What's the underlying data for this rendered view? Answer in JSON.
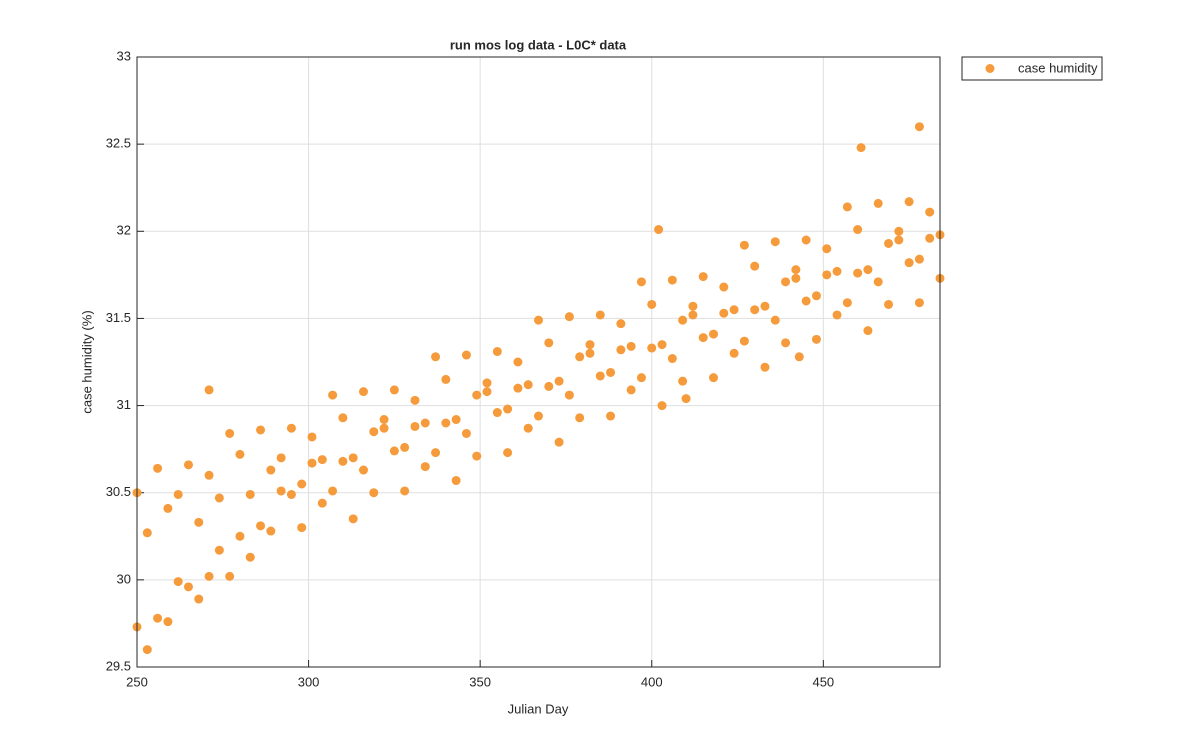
{
  "chart_data": {
    "type": "scatter",
    "title": "run mos log data - L0C* data",
    "x_label": "Julian Day",
    "y_label": "case humidity (%)",
    "xlim": [
      250,
      484
    ],
    "xticks": [
      250,
      300,
      350,
      400,
      450
    ],
    "ylim": [
      29.5,
      33
    ],
    "yticks": [
      29.5,
      30,
      30.5,
      31,
      31.5,
      32,
      32.5,
      33
    ],
    "grid": true,
    "legend": "outside-right",
    "series": [
      {
        "name": "case humidity",
        "color": "#f59b3b",
        "x": [
          250,
          253,
          256,
          259,
          262,
          265,
          268,
          271,
          274,
          277,
          280,
          283,
          286,
          289,
          292,
          295,
          298,
          301,
          304,
          307,
          310,
          313,
          316,
          319,
          322,
          325,
          328,
          331,
          334,
          337,
          340,
          343,
          346,
          349,
          352,
          355,
          358,
          361,
          364,
          367,
          370,
          373,
          376,
          379,
          382,
          385,
          388,
          391,
          394,
          397,
          400,
          403,
          406,
          409,
          412,
          415,
          418,
          421,
          424,
          427,
          430,
          433,
          436,
          439,
          442,
          445,
          448,
          451,
          454,
          457,
          460,
          463,
          466,
          469,
          472,
          475,
          478,
          481,
          484,
          250,
          253,
          256,
          259,
          262,
          265,
          268,
          271,
          274,
          277,
          280,
          283,
          286,
          289,
          292,
          295,
          298,
          301,
          304,
          307,
          310,
          313,
          316,
          319,
          322,
          325,
          328,
          331,
          334,
          337,
          340,
          343,
          346,
          349,
          352,
          355,
          358,
          361,
          364,
          367,
          370,
          373,
          376,
          379,
          382,
          385,
          388,
          391,
          394,
          397,
          400,
          403,
          406,
          409,
          412,
          415,
          418,
          421,
          424,
          427,
          430,
          433,
          436,
          439,
          442,
          445,
          448,
          451,
          454,
          457,
          460,
          463,
          466,
          469,
          472,
          475,
          478,
          481,
          484,
          271,
          402,
          461,
          478,
          410,
          443
        ],
        "values": [
          30.5,
          30.27,
          30.64,
          30.41,
          30.49,
          30.66,
          30.33,
          30.6,
          30.47,
          30.84,
          30.72,
          30.49,
          30.86,
          30.63,
          30.7,
          30.87,
          30.55,
          30.82,
          30.69,
          31.06,
          30.93,
          30.7,
          31.08,
          30.85,
          30.92,
          31.09,
          30.76,
          31.03,
          30.9,
          31.28,
          31.15,
          30.92,
          31.29,
          31.06,
          31.13,
          31.31,
          30.98,
          31.25,
          31.12,
          31.49,
          31.36,
          31.14,
          31.51,
          31.28,
          31.35,
          31.52,
          31.19,
          31.47,
          31.34,
          31.71,
          31.58,
          31.35,
          31.72,
          31.49,
          31.57,
          31.74,
          31.41,
          31.68,
          31.55,
          31.92,
          31.8,
          31.57,
          31.94,
          31.71,
          31.78,
          31.95,
          31.63,
          31.9,
          31.77,
          32.14,
          32.01,
          31.78,
          32.16,
          31.93,
          32.0,
          32.17,
          31.84,
          32.11,
          31.98,
          29.73,
          29.6,
          29.78,
          29.76,
          29.99,
          29.96,
          29.89,
          30.02,
          30.17,
          30.02,
          30.25,
          30.13,
          30.31,
          30.28,
          30.51,
          30.49,
          30.3,
          30.67,
          30.44,
          30.51,
          30.68,
          30.35,
          30.63,
          30.5,
          30.87,
          30.74,
          30.51,
          30.88,
          30.65,
          30.73,
          30.9,
          30.57,
          30.84,
          30.71,
          31.08,
          30.96,
          30.73,
          31.1,
          30.87,
          30.94,
          31.11,
          30.79,
          31.06,
          30.93,
          31.3,
          31.17,
          30.94,
          31.32,
          31.09,
          31.16,
          31.33,
          31.0,
          31.27,
          31.14,
          31.52,
          31.39,
          31.16,
          31.53,
          31.3,
          31.37,
          31.55,
          31.22,
          31.49,
          31.36,
          31.73,
          31.6,
          31.38,
          31.75,
          31.52,
          31.59,
          31.76,
          31.43,
          31.71,
          31.58,
          31.95,
          31.82,
          31.59,
          31.96,
          31.73,
          31.09,
          32.01,
          32.48,
          32.6,
          31.04,
          31.28
        ]
      }
    ]
  }
}
